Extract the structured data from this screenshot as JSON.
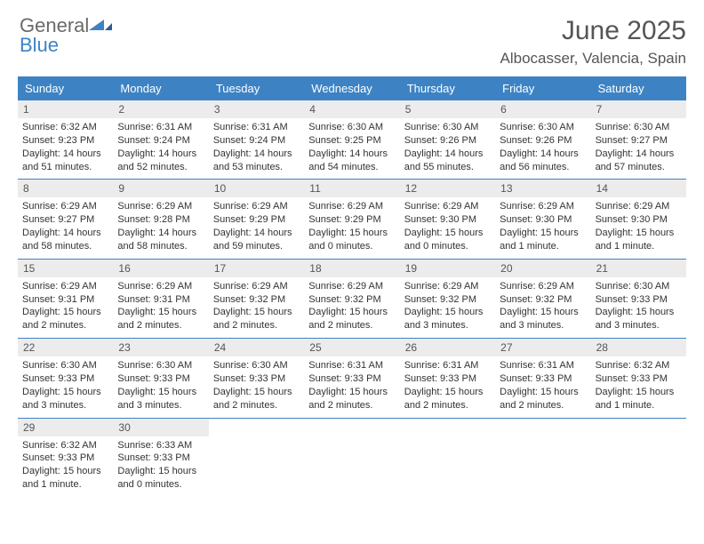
{
  "logo": {
    "text1": "General",
    "text2": "Blue"
  },
  "title": "June 2025",
  "location": "Albocasser, Valencia, Spain",
  "accent_color": "#3d83c4",
  "header_bg": "#ececec",
  "day_names": [
    "Sunday",
    "Monday",
    "Tuesday",
    "Wednesday",
    "Thursday",
    "Friday",
    "Saturday"
  ],
  "weeks": [
    [
      {
        "n": "1",
        "sr": "Sunrise: 6:32 AM",
        "ss": "Sunset: 9:23 PM",
        "d1": "Daylight: 14 hours",
        "d2": "and 51 minutes."
      },
      {
        "n": "2",
        "sr": "Sunrise: 6:31 AM",
        "ss": "Sunset: 9:24 PM",
        "d1": "Daylight: 14 hours",
        "d2": "and 52 minutes."
      },
      {
        "n": "3",
        "sr": "Sunrise: 6:31 AM",
        "ss": "Sunset: 9:24 PM",
        "d1": "Daylight: 14 hours",
        "d2": "and 53 minutes."
      },
      {
        "n": "4",
        "sr": "Sunrise: 6:30 AM",
        "ss": "Sunset: 9:25 PM",
        "d1": "Daylight: 14 hours",
        "d2": "and 54 minutes."
      },
      {
        "n": "5",
        "sr": "Sunrise: 6:30 AM",
        "ss": "Sunset: 9:26 PM",
        "d1": "Daylight: 14 hours",
        "d2": "and 55 minutes."
      },
      {
        "n": "6",
        "sr": "Sunrise: 6:30 AM",
        "ss": "Sunset: 9:26 PM",
        "d1": "Daylight: 14 hours",
        "d2": "and 56 minutes."
      },
      {
        "n": "7",
        "sr": "Sunrise: 6:30 AM",
        "ss": "Sunset: 9:27 PM",
        "d1": "Daylight: 14 hours",
        "d2": "and 57 minutes."
      }
    ],
    [
      {
        "n": "8",
        "sr": "Sunrise: 6:29 AM",
        "ss": "Sunset: 9:27 PM",
        "d1": "Daylight: 14 hours",
        "d2": "and 58 minutes."
      },
      {
        "n": "9",
        "sr": "Sunrise: 6:29 AM",
        "ss": "Sunset: 9:28 PM",
        "d1": "Daylight: 14 hours",
        "d2": "and 58 minutes."
      },
      {
        "n": "10",
        "sr": "Sunrise: 6:29 AM",
        "ss": "Sunset: 9:29 PM",
        "d1": "Daylight: 14 hours",
        "d2": "and 59 minutes."
      },
      {
        "n": "11",
        "sr": "Sunrise: 6:29 AM",
        "ss": "Sunset: 9:29 PM",
        "d1": "Daylight: 15 hours",
        "d2": "and 0 minutes."
      },
      {
        "n": "12",
        "sr": "Sunrise: 6:29 AM",
        "ss": "Sunset: 9:30 PM",
        "d1": "Daylight: 15 hours",
        "d2": "and 0 minutes."
      },
      {
        "n": "13",
        "sr": "Sunrise: 6:29 AM",
        "ss": "Sunset: 9:30 PM",
        "d1": "Daylight: 15 hours",
        "d2": "and 1 minute."
      },
      {
        "n": "14",
        "sr": "Sunrise: 6:29 AM",
        "ss": "Sunset: 9:30 PM",
        "d1": "Daylight: 15 hours",
        "d2": "and 1 minute."
      }
    ],
    [
      {
        "n": "15",
        "sr": "Sunrise: 6:29 AM",
        "ss": "Sunset: 9:31 PM",
        "d1": "Daylight: 15 hours",
        "d2": "and 2 minutes."
      },
      {
        "n": "16",
        "sr": "Sunrise: 6:29 AM",
        "ss": "Sunset: 9:31 PM",
        "d1": "Daylight: 15 hours",
        "d2": "and 2 minutes."
      },
      {
        "n": "17",
        "sr": "Sunrise: 6:29 AM",
        "ss": "Sunset: 9:32 PM",
        "d1": "Daylight: 15 hours",
        "d2": "and 2 minutes."
      },
      {
        "n": "18",
        "sr": "Sunrise: 6:29 AM",
        "ss": "Sunset: 9:32 PM",
        "d1": "Daylight: 15 hours",
        "d2": "and 2 minutes."
      },
      {
        "n": "19",
        "sr": "Sunrise: 6:29 AM",
        "ss": "Sunset: 9:32 PM",
        "d1": "Daylight: 15 hours",
        "d2": "and 3 minutes."
      },
      {
        "n": "20",
        "sr": "Sunrise: 6:29 AM",
        "ss": "Sunset: 9:32 PM",
        "d1": "Daylight: 15 hours",
        "d2": "and 3 minutes."
      },
      {
        "n": "21",
        "sr": "Sunrise: 6:30 AM",
        "ss": "Sunset: 9:33 PM",
        "d1": "Daylight: 15 hours",
        "d2": "and 3 minutes."
      }
    ],
    [
      {
        "n": "22",
        "sr": "Sunrise: 6:30 AM",
        "ss": "Sunset: 9:33 PM",
        "d1": "Daylight: 15 hours",
        "d2": "and 3 minutes."
      },
      {
        "n": "23",
        "sr": "Sunrise: 6:30 AM",
        "ss": "Sunset: 9:33 PM",
        "d1": "Daylight: 15 hours",
        "d2": "and 3 minutes."
      },
      {
        "n": "24",
        "sr": "Sunrise: 6:30 AM",
        "ss": "Sunset: 9:33 PM",
        "d1": "Daylight: 15 hours",
        "d2": "and 2 minutes."
      },
      {
        "n": "25",
        "sr": "Sunrise: 6:31 AM",
        "ss": "Sunset: 9:33 PM",
        "d1": "Daylight: 15 hours",
        "d2": "and 2 minutes."
      },
      {
        "n": "26",
        "sr": "Sunrise: 6:31 AM",
        "ss": "Sunset: 9:33 PM",
        "d1": "Daylight: 15 hours",
        "d2": "and 2 minutes."
      },
      {
        "n": "27",
        "sr": "Sunrise: 6:31 AM",
        "ss": "Sunset: 9:33 PM",
        "d1": "Daylight: 15 hours",
        "d2": "and 2 minutes."
      },
      {
        "n": "28",
        "sr": "Sunrise: 6:32 AM",
        "ss": "Sunset: 9:33 PM",
        "d1": "Daylight: 15 hours",
        "d2": "and 1 minute."
      }
    ],
    [
      {
        "n": "29",
        "sr": "Sunrise: 6:32 AM",
        "ss": "Sunset: 9:33 PM",
        "d1": "Daylight: 15 hours",
        "d2": "and 1 minute."
      },
      {
        "n": "30",
        "sr": "Sunrise: 6:33 AM",
        "ss": "Sunset: 9:33 PM",
        "d1": "Daylight: 15 hours",
        "d2": "and 0 minutes."
      },
      {
        "empty": true
      },
      {
        "empty": true
      },
      {
        "empty": true
      },
      {
        "empty": true
      },
      {
        "empty": true
      }
    ]
  ]
}
